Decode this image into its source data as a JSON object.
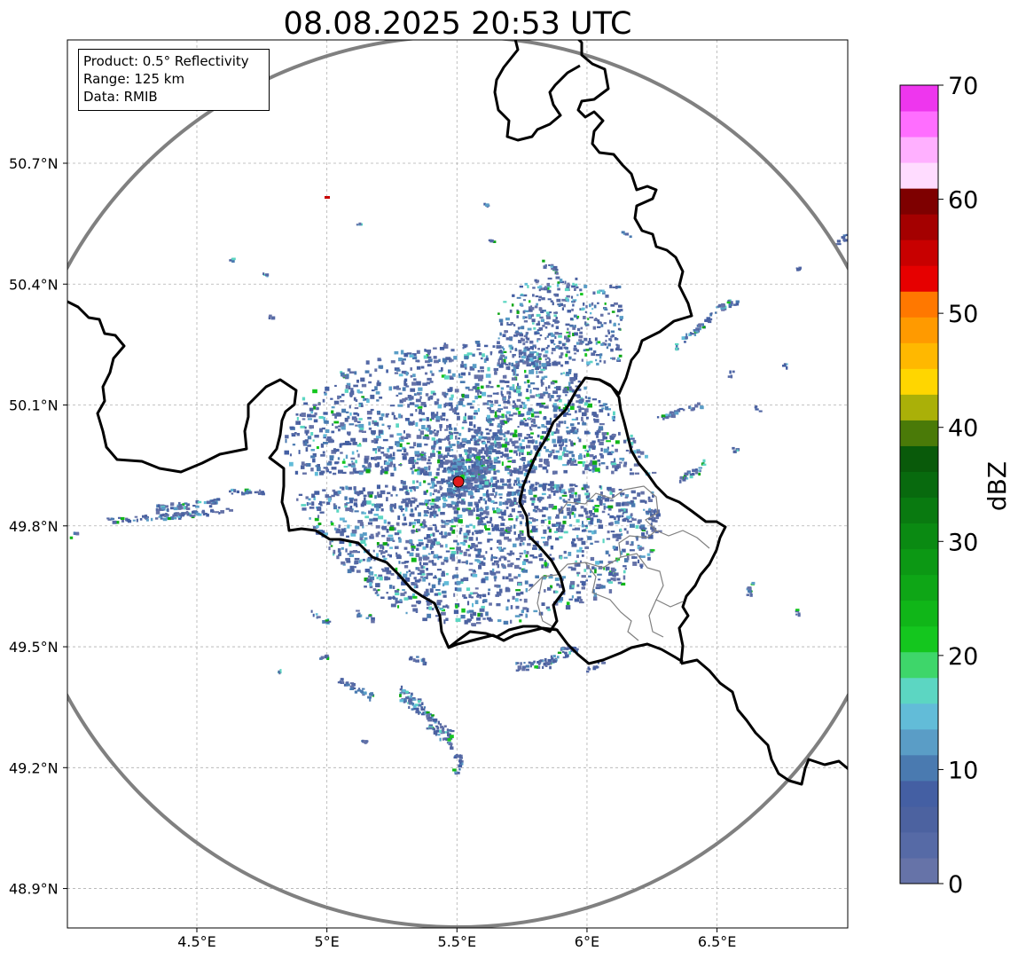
{
  "title": "08.08.2025 20:53 UTC",
  "info_box": {
    "product": "Product: 0.5° Reflectivity",
    "range": "Range: 125 km",
    "data": "Data: RMIB"
  },
  "map": {
    "lon_range": [
      4.0,
      7.0
    ],
    "lat_range": [
      48.8,
      51.0
    ],
    "x_ticks": [
      {
        "value": 4.5,
        "label": "4.5°E"
      },
      {
        "value": 5.0,
        "label": "5°E"
      },
      {
        "value": 5.5,
        "label": "5.5°E"
      },
      {
        "value": 6.0,
        "label": "6°E"
      },
      {
        "value": 6.5,
        "label": "6.5°E"
      }
    ],
    "y_ticks": [
      {
        "value": 50.7,
        "label": "50.7°N"
      },
      {
        "value": 50.4,
        "label": "50.4°N"
      },
      {
        "value": 50.1,
        "label": "50.1°N"
      },
      {
        "value": 49.8,
        "label": "49.8°N"
      },
      {
        "value": 49.5,
        "label": "49.5°N"
      },
      {
        "value": 49.2,
        "label": "49.2°N"
      },
      {
        "value": 48.9,
        "label": "48.9°N"
      }
    ],
    "grid": true,
    "radar_site": {
      "lon": 5.505,
      "lat": 49.914,
      "color": "#e21b1b"
    },
    "range_ring_color": "#808080",
    "border_color": "#000000",
    "admin_border_color": "#808080"
  },
  "colorbar": {
    "label": "dBZ",
    "vmin": 0,
    "vmax": 70,
    "step": 2.5,
    "ticks": [
      "0",
      "10",
      "20",
      "30",
      "40",
      "50",
      "60",
      "70"
    ],
    "colors": [
      "#6673a8",
      "#566aa6",
      "#4c62a0",
      "#445fa3",
      "#4a7ab0",
      "#5a9dc6",
      "#62bcd8",
      "#5cd6c2",
      "#3ed66a",
      "#14c61e",
      "#10b618",
      "#0ea616",
      "#0c9814",
      "#0a8a12",
      "#097a10",
      "#086a0e",
      "#095a0a",
      "#4a7a08",
      "#aab008",
      "#ffd600",
      "#ffb800",
      "#ff9a00",
      "#ff7800",
      "#e60000",
      "#c80000",
      "#a40000",
      "#7e0000",
      "#ffdcff",
      "#ffb0ff",
      "#ff6eff",
      "#ee36ee"
    ]
  }
}
